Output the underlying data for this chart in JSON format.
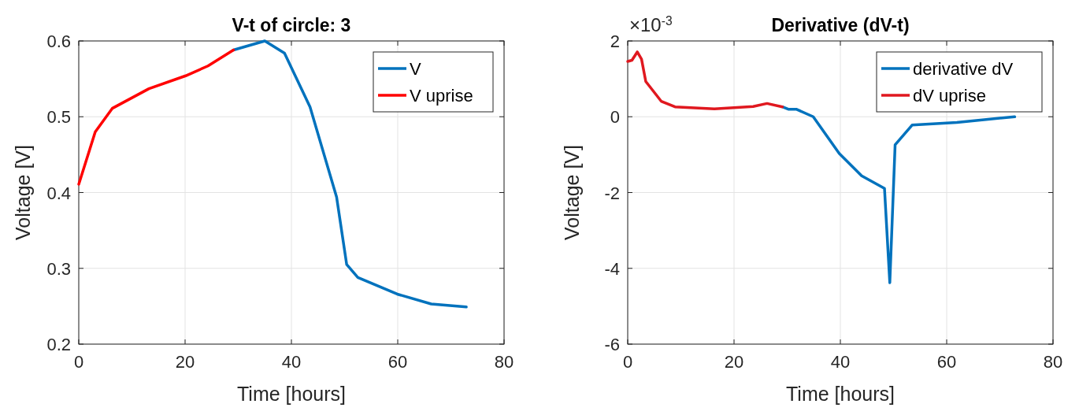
{
  "chart_data": [
    {
      "type": "line",
      "title": "V-t of circle: 3",
      "xlabel": "Time [hours]",
      "ylabel": "Voltage [V]",
      "xlim": [
        0,
        80
      ],
      "ylim": [
        0.2,
        0.6
      ],
      "xticks": [
        0,
        20,
        40,
        60,
        80
      ],
      "yticks": [
        0.2,
        0.3,
        0.4,
        0.5,
        0.6
      ],
      "grid": true,
      "legend": "top right",
      "line_style": "solid",
      "series": [
        {
          "name": "V",
          "color": "#0072bd",
          "x": [
            29.1,
            35,
            38.7,
            43.5,
            48.5,
            50.4,
            52.5,
            59.9,
            66.3,
            72.9
          ],
          "values": [
            0.588,
            0.6,
            0.584,
            0.513,
            0.394,
            0.305,
            0.288,
            0.266,
            0.253,
            0.249
          ]
        },
        {
          "name": "V uprise",
          "color": "#ff0000",
          "x": [
            0,
            3.1,
            6.3,
            13.2,
            20.1,
            24.3,
            29.1
          ],
          "values": [
            0.411,
            0.48,
            0.511,
            0.537,
            0.554,
            0.567,
            0.588
          ]
        }
      ]
    },
    {
      "type": "line",
      "title": "Derivative (dV-t)",
      "xlabel": "Time [hours]",
      "ylabel": "Voltage [V]",
      "annotations": [
        "×10$^{-3}$"
      ],
      "xlim": [
        0,
        80
      ],
      "ylim": [
        -6,
        2
      ],
      "xticks": [
        0,
        20,
        40,
        60,
        80
      ],
      "yticks": [
        -6,
        -4,
        -2,
        0,
        2
      ],
      "grid": true,
      "legend": "top right",
      "line_style": "solid",
      "series": [
        {
          "name": "derivative dV",
          "color": "#0072bd",
          "x": [
            29.1,
            30.2,
            31.7,
            34.9,
            39.8,
            44,
            48.3,
            49.3,
            50.3,
            53.5,
            61.9,
            72.8
          ],
          "values": [
            0.26,
            0.2,
            0.2,
            0,
            -0.97,
            -1.56,
            -1.89,
            -4.38,
            -0.74,
            -0.22,
            -0.15,
            0
          ]
        },
        {
          "name": "dV uprise",
          "color": "#e0181f",
          "x": [
            0,
            0.8,
            1.8,
            2.6,
            3.4,
            6.3,
            8.9,
            16.3,
            23.6,
            26.2,
            29.1
          ],
          "values": [
            1.46,
            1.49,
            1.71,
            1.52,
            0.93,
            0.41,
            0.26,
            0.21,
            0.27,
            0.35,
            0.26
          ]
        }
      ]
    }
  ]
}
